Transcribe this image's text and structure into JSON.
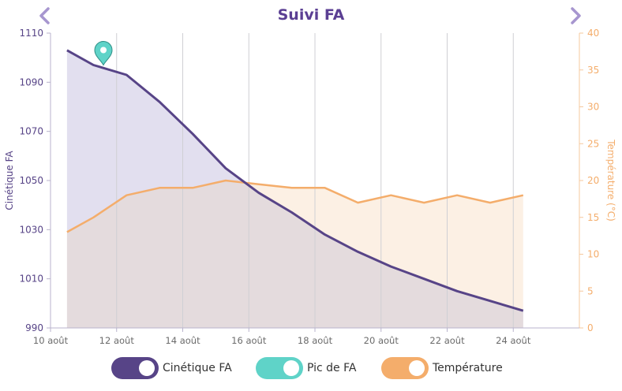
{
  "header": {
    "title": "Suivi FA",
    "prev_icon": "chevron-left-icon",
    "next_icon": "chevron-right-icon"
  },
  "colors": {
    "fa_line": "#574487",
    "fa_fill": "#e2dfef",
    "temp_line": "#f4ad6b",
    "temp_fill": "#fcf0e4",
    "overlap_fill": "#e4dbdd",
    "pic": "#5fd3c8",
    "axis_left": "#574487",
    "axis_right": "#f4ad6b",
    "title": "#5b3f93",
    "nav": "#a796cf"
  },
  "chart_data": {
    "type": "area",
    "x_ticks": [
      "10 août",
      "12 août",
      "14 août",
      "16 août",
      "18 août",
      "20 août",
      "22 août",
      "24 août"
    ],
    "x_tick_pos": [
      0,
      2,
      4,
      6,
      8,
      10,
      12,
      14
    ],
    "xlim": [
      0,
      16
    ],
    "y_left": {
      "label": "Cinétique FA",
      "lim": [
        990,
        1110
      ],
      "ticks": [
        990,
        1010,
        1030,
        1050,
        1070,
        1090,
        1110
      ]
    },
    "y_right": {
      "label": "Température (°C)",
      "lim": [
        0,
        40
      ],
      "ticks": [
        0,
        5,
        10,
        15,
        20,
        25,
        30,
        35,
        40
      ]
    },
    "series": [
      {
        "name": "Cinétique FA",
        "axis": "left",
        "x": [
          0.5,
          1.3,
          2.3,
          3.3,
          4.3,
          5.3,
          6.3,
          7.3,
          8.3,
          9.3,
          10.3,
          11.3,
          12.3,
          13.3,
          14.3
        ],
        "values": [
          1103,
          1097,
          1093,
          1082,
          1069,
          1055,
          1045,
          1037,
          1028,
          1021,
          1015,
          1010,
          1005,
          1001,
          997
        ]
      },
      {
        "name": "Température",
        "axis": "right",
        "x": [
          0.5,
          1.3,
          2.3,
          3.3,
          4.3,
          5.3,
          6.3,
          7.3,
          8.3,
          9.3,
          10.3,
          11.3,
          12.3,
          13.3,
          14.3
        ],
        "values": [
          13,
          15,
          18,
          19,
          19,
          20,
          19.5,
          19,
          19,
          17,
          18,
          17,
          18,
          17,
          18
        ]
      }
    ],
    "markers": [
      {
        "name": "Pic de FA",
        "x": 1.6,
        "y": 1097,
        "icon": "map-pin-icon"
      }
    ]
  },
  "legend": [
    {
      "label": "Cinétique FA",
      "color": "#574487"
    },
    {
      "label": "Pic de FA",
      "color": "#5fd3c8"
    },
    {
      "label": "Température",
      "color": "#f4ad6b"
    }
  ]
}
